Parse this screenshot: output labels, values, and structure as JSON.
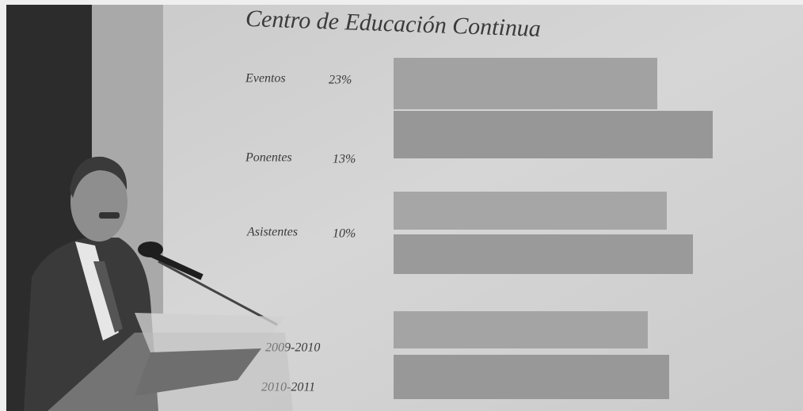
{
  "slide": {
    "title": "Centro de Educación Continua",
    "rows": [
      {
        "label": "Eventos",
        "percent": "23%"
      },
      {
        "label": "Ponentes",
        "percent": "13%"
      },
      {
        "label": "Asistentes",
        "percent": "10%"
      }
    ],
    "years": [
      "2009-2010",
      "2010-2011"
    ]
  }
}
